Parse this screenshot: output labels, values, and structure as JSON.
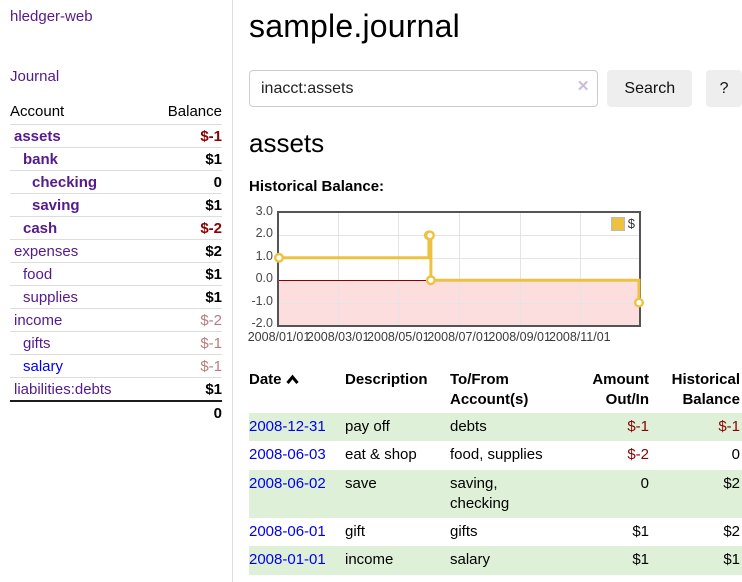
{
  "colors": {
    "link_purple": "#551a8b",
    "link_blue": "#0000ee",
    "negative": "#8b0000",
    "negative_muted": "#b97c7c",
    "row_stripe_green": "#dff0d8",
    "chart_series_yellow": "#edc240",
    "chart_negative_region": "#fcdede",
    "chart_zero_line": "#8b0000"
  },
  "app": {
    "title": "hledger-web",
    "nav_journal_label": "Journal"
  },
  "sidebar": {
    "column_headers": [
      "Account",
      "Balance"
    ],
    "accounts": [
      {
        "name": "assets",
        "depth": 0,
        "bold": true,
        "balance": "$-1"
      },
      {
        "name": "bank",
        "depth": 1,
        "bold": true,
        "balance": "$1"
      },
      {
        "name": "checking",
        "depth": 2,
        "bold": true,
        "balance": "0"
      },
      {
        "name": "saving",
        "depth": 2,
        "bold": true,
        "balance": "$1"
      },
      {
        "name": "cash",
        "depth": 1,
        "bold": true,
        "balance": "$-2"
      },
      {
        "name": "expenses",
        "depth": 0,
        "bold": false,
        "balance": "$2"
      },
      {
        "name": "food",
        "depth": 1,
        "bold": false,
        "balance": "$1"
      },
      {
        "name": "supplies",
        "depth": 1,
        "bold": false,
        "balance": "$1"
      },
      {
        "name": "income",
        "depth": 0,
        "bold": false,
        "balance": "$-2"
      },
      {
        "name": "gifts",
        "depth": 1,
        "bold": false,
        "balance": "$-1"
      },
      {
        "name": "salary",
        "depth": 1,
        "bold": false,
        "balance": "$-1",
        "link_color": "#0000ee"
      },
      {
        "name": "liabilities:debts",
        "depth": 0,
        "bold": false,
        "balance": "$1"
      }
    ],
    "total_balance": "0"
  },
  "main": {
    "title": "sample.journal",
    "search": {
      "value": "inacct:assets",
      "clear_icon": "✕",
      "button_label": "Search",
      "help_label": "?"
    },
    "account_heading": "assets",
    "chart_label": "Historical Balance:"
  },
  "chart_data": {
    "type": "line",
    "title": "Historical Balance",
    "step": true,
    "series": [
      {
        "name": "$",
        "color": "#edc240",
        "points": [
          [
            "2008-01-01",
            1
          ],
          [
            "2008-06-01",
            2
          ],
          [
            "2008-06-02",
            2
          ],
          [
            "2008-06-03",
            0
          ],
          [
            "2008-12-31",
            -1
          ]
        ]
      }
    ],
    "xrange": [
      "2008-01-01",
      "2008-12-31"
    ],
    "ylim": [
      -2,
      3
    ],
    "yticks": [
      3.0,
      2.0,
      1.0,
      0.0,
      -1.0,
      -2.0
    ],
    "xtick_labels": [
      "2008/01/01",
      "2008/03/01",
      "2008/05/01",
      "2008/07/01",
      "2008/09/01",
      "2008/11/01"
    ],
    "legend": "$",
    "legend_position": "top-right",
    "grid": true,
    "negative_region": true
  },
  "register": {
    "headers": [
      "Date",
      "Description",
      "To/From Account(s)",
      "Amount Out/In",
      "Historical Balance"
    ],
    "sort": {
      "column": "Date",
      "direction": "ascending"
    },
    "rows": [
      {
        "date": "2008-12-31",
        "description": "pay off",
        "accounts": "debts",
        "amount": "$-1",
        "balance": "$-1"
      },
      {
        "date": "2008-06-03",
        "description": "eat & shop",
        "accounts": "food, supplies",
        "amount": "$-2",
        "balance": "0"
      },
      {
        "date": "2008-06-02",
        "description": "save",
        "accounts": "saving, checking",
        "amount": "0",
        "balance": "$2"
      },
      {
        "date": "2008-06-01",
        "description": "gift",
        "accounts": "gifts",
        "amount": "$1",
        "balance": "$2"
      },
      {
        "date": "2008-01-01",
        "description": "income",
        "accounts": "salary",
        "amount": "$1",
        "balance": "$1"
      }
    ]
  }
}
